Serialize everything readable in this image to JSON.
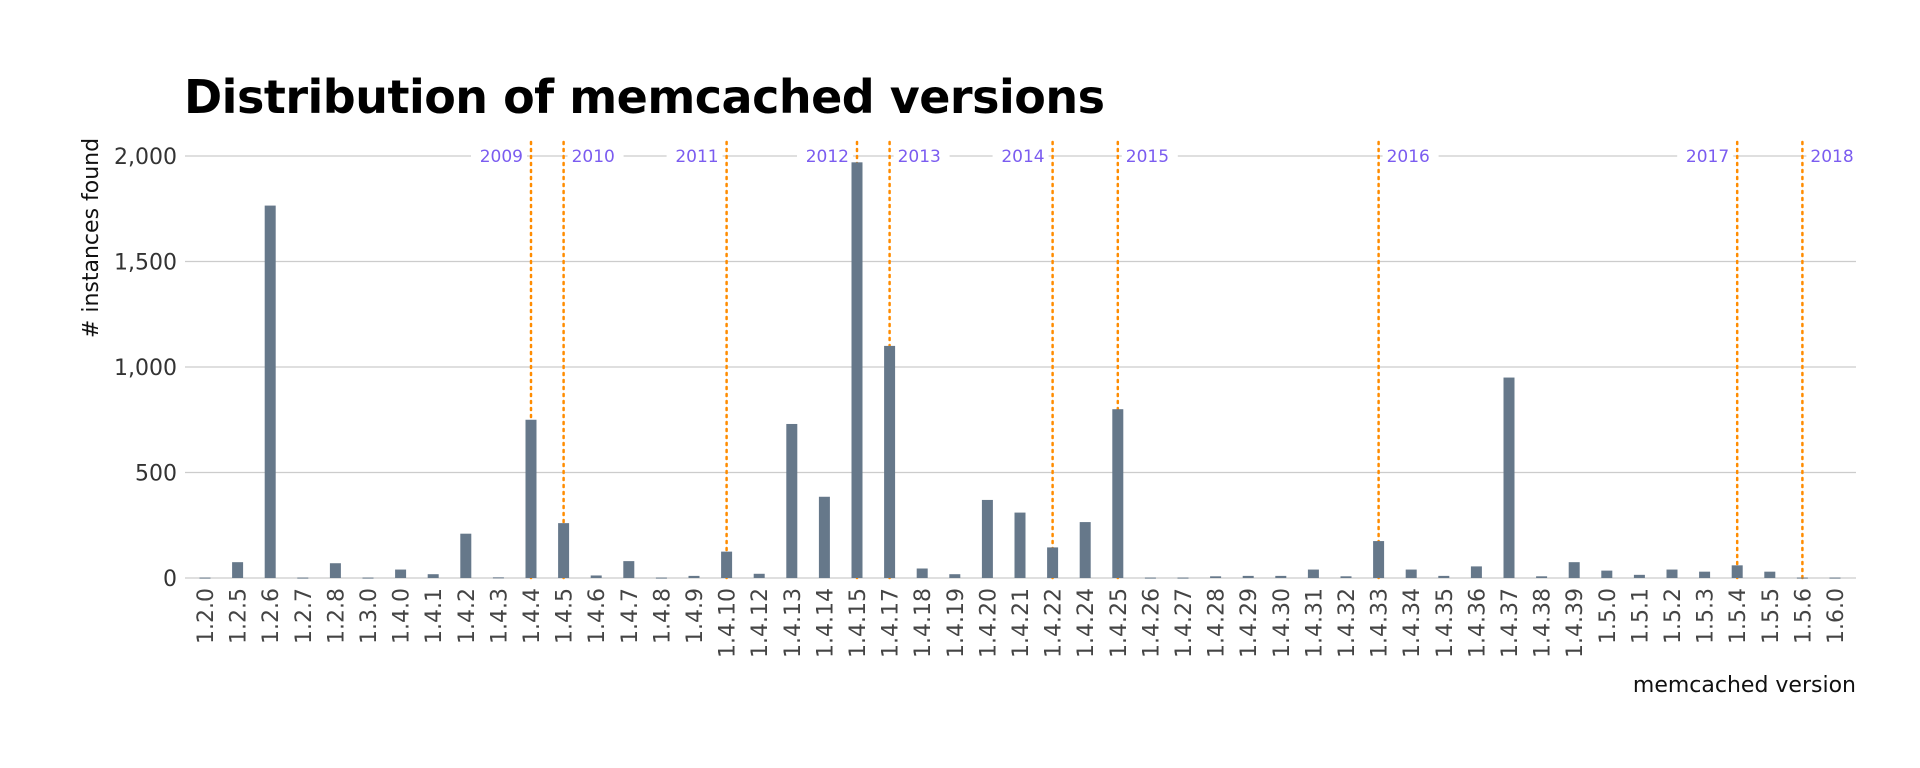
{
  "chart_data": {
    "type": "bar",
    "title": "Distribution of memcached versions",
    "xlabel": "memcached version",
    "ylabel": "# instances found",
    "ylim": [
      0,
      2000
    ],
    "yticks": [
      0,
      500,
      1000,
      1500,
      2000
    ],
    "ytick_labels": [
      "0",
      "500",
      "1,000",
      "1,500",
      "2,000"
    ],
    "grid": "horizontal",
    "bar_color": "#66788a",
    "categories": [
      "1.2.0",
      "1.2.5",
      "1.2.6",
      "1.2.7",
      "1.2.8",
      "1.3.0",
      "1.4.0",
      "1.4.1",
      "1.4.2",
      "1.4.3",
      "1.4.4",
      "1.4.5",
      "1.4.6",
      "1.4.7",
      "1.4.8",
      "1.4.9",
      "1.4.10",
      "1.4.12",
      "1.4.13",
      "1.4.14",
      "1.4.15",
      "1.4.17",
      "1.4.18",
      "1.4.19",
      "1.4.20",
      "1.4.21",
      "1.4.22",
      "1.4.24",
      "1.4.25",
      "1.4.26",
      "1.4.27",
      "1.4.28",
      "1.4.29",
      "1.4.30",
      "1.4.31",
      "1.4.32",
      "1.4.33",
      "1.4.34",
      "1.4.35",
      "1.4.36",
      "1.4.37",
      "1.4.38",
      "1.4.39",
      "1.5.0",
      "1.5.1",
      "1.5.2",
      "1.5.3",
      "1.5.4",
      "1.5.5",
      "1.5.6",
      "1.6.0"
    ],
    "values": [
      2,
      75,
      1765,
      2,
      70,
      2,
      40,
      18,
      210,
      3,
      750,
      260,
      12,
      80,
      2,
      10,
      125,
      20,
      730,
      385,
      1970,
      1100,
      45,
      18,
      370,
      310,
      145,
      265,
      800,
      2,
      2,
      8,
      10,
      10,
      40,
      8,
      175,
      40,
      10,
      55,
      950,
      8,
      75,
      35,
      15,
      40,
      30,
      60,
      30,
      2,
      2
    ],
    "annotations": {
      "type": "vertical-dotted-lines",
      "color": "#ff8c00",
      "markers": [
        {
          "year": "2009",
          "version": "1.4.4",
          "label_side": "left"
        },
        {
          "year": "2010",
          "version": "1.4.5",
          "label_side": "right"
        },
        {
          "year": "2011",
          "version": "1.4.10",
          "label_side": "left"
        },
        {
          "year": "2012",
          "version": "1.4.15",
          "label_side": "left"
        },
        {
          "year": "2013",
          "version": "1.4.17",
          "label_side": "right"
        },
        {
          "year": "2014",
          "version": "1.4.22",
          "label_side": "left"
        },
        {
          "year": "2015",
          "version": "1.4.25",
          "label_side": "right"
        },
        {
          "year": "2016",
          "version": "1.4.33",
          "label_side": "right"
        },
        {
          "year": "2017",
          "version": "1.5.4",
          "label_side": "left"
        },
        {
          "year": "2018",
          "version": "1.5.6",
          "label_side": "right"
        }
      ]
    }
  }
}
